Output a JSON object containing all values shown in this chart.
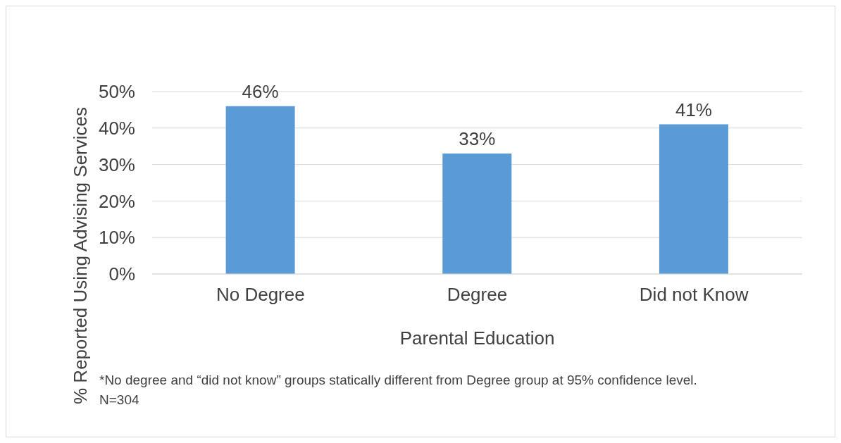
{
  "chart_data": {
    "type": "bar",
    "xlabel": "Parental Education",
    "ylabel": "% Reported Using Advising Services",
    "categories": [
      "No Degree",
      "Degree",
      "Did not Know"
    ],
    "values": [
      46,
      33,
      41
    ],
    "value_labels": [
      "46%",
      "33%",
      "41%"
    ],
    "color": "#5b9bd5",
    "ylim": [
      0,
      50
    ],
    "yticks": [
      {
        "value": 0,
        "label": "0%"
      },
      {
        "value": 10,
        "label": "10%"
      },
      {
        "value": 20,
        "label": "20%"
      },
      {
        "value": 30,
        "label": "30%"
      },
      {
        "value": 40,
        "label": "40%"
      },
      {
        "value": 50,
        "label": "50%"
      }
    ],
    "grid": "y",
    "annotations": [
      "*No degree and “did not know” groups statically different from Degree group at 95% confidence level. N=304"
    ]
  }
}
